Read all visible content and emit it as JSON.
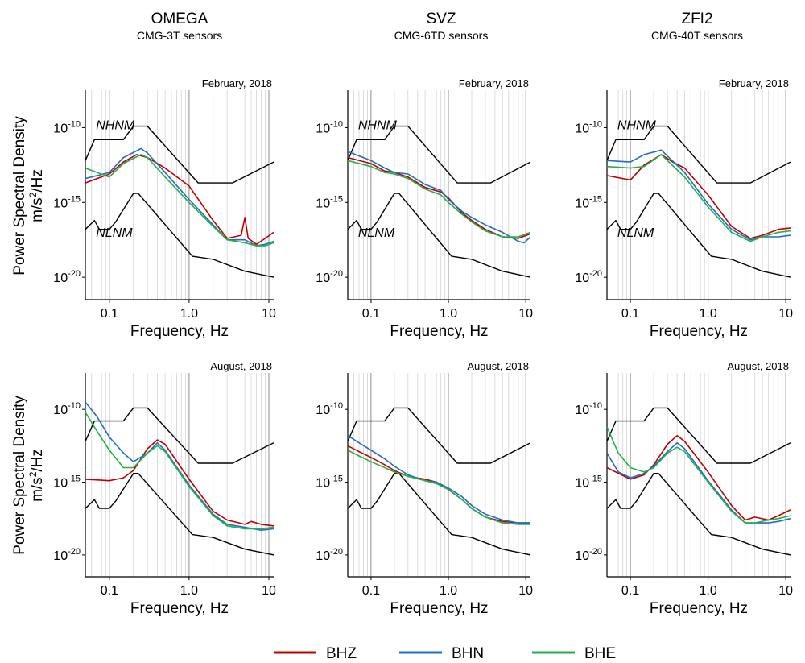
{
  "columns": [
    {
      "station": "OMEGA",
      "sensor": "CMG-3T sensors"
    },
    {
      "station": "SVZ",
      "sensor": "CMG-6TD sensors"
    },
    {
      "station": "ZFI2",
      "sensor": "CMG-40T sensors"
    }
  ],
  "rows": [
    {
      "month": "February, 2018"
    },
    {
      "month": "August, 2018"
    }
  ],
  "ylabel_line1": "Power Spectral Density",
  "ylabel_line2": "m/s",
  "ylabel_sup": "2",
  "ylabel_tail": "/Hz",
  "xlabel": "Frequency, Hz",
  "x_ticks": [
    "0.1",
    "1.0",
    "10"
  ],
  "y_ticks": [
    {
      "base": "10",
      "exp": "-10"
    },
    {
      "base": "10",
      "exp": "-15"
    },
    {
      "base": "10",
      "exp": "-20"
    }
  ],
  "nhnm_label": "NHNM",
  "nlnm_label": "NLNM",
  "legend": [
    {
      "name": "BHZ",
      "color": "#c00000"
    },
    {
      "name": "BHN",
      "color": "#1f6fc0"
    },
    {
      "name": "BHE",
      "color": "#22b04a"
    }
  ],
  "chart_data": {
    "type": "line",
    "xscale": "log",
    "yscale": "log",
    "xlabel": "Frequency, Hz",
    "ylabel": "Power Spectral Density m/s²/Hz",
    "xlim": [
      0.05,
      11.5
    ],
    "ylog_lim": [
      -21.5,
      -7.5
    ],
    "reference_models": {
      "NHNM": {
        "x": [
          0.05,
          0.065,
          0.15,
          0.2,
          0.3,
          1.3,
          3.5,
          11.5
        ],
        "log10_y": [
          -12.2,
          -10.8,
          -10.8,
          -9.9,
          -9.9,
          -13.7,
          -13.7,
          -12.3
        ]
      },
      "NLNM": {
        "x": [
          0.05,
          0.065,
          0.075,
          0.1,
          0.12,
          0.2,
          0.23,
          1.1,
          2.0,
          5.0,
          11.5
        ],
        "log10_y": [
          -16.8,
          -16.2,
          -16.8,
          -16.8,
          -16.3,
          -14.4,
          -14.4,
          -18.6,
          -18.8,
          -19.6,
          -20.0
        ]
      }
    },
    "panels": [
      {
        "station": "OMEGA",
        "month": "February, 2018",
        "series": [
          {
            "name": "BHZ",
            "x": [
              0.05,
              0.1,
              0.15,
              0.22,
              0.3,
              0.5,
              1.0,
              2.0,
              3.0,
              4.5,
              5.0,
              5.5,
              7.0,
              9.0,
              11.5
            ],
            "log10_y": [
              -13.7,
              -13.1,
              -12.3,
              -11.8,
              -12.0,
              -12.7,
              -13.9,
              -16.2,
              -17.4,
              -17.2,
              -16.0,
              -17.4,
              -17.8,
              -17.4,
              -17.0
            ]
          },
          {
            "name": "BHN",
            "x": [
              0.05,
              0.1,
              0.15,
              0.25,
              0.3,
              0.5,
              1.0,
              2.0,
              3.0,
              5.0,
              7.0,
              9.0,
              11.5
            ],
            "log10_y": [
              -13.4,
              -13.0,
              -12.0,
              -11.4,
              -11.7,
              -13.0,
              -14.8,
              -16.5,
              -17.5,
              -17.5,
              -17.9,
              -17.8,
              -17.6
            ]
          },
          {
            "name": "BHE",
            "x": [
              0.05,
              0.1,
              0.15,
              0.25,
              0.3,
              0.5,
              1.0,
              2.0,
              3.0,
              5.0,
              7.0,
              9.0,
              11.5
            ],
            "log10_y": [
              -12.7,
              -13.3,
              -12.4,
              -11.8,
              -12.0,
              -13.3,
              -15.0,
              -16.6,
              -17.5,
              -17.7,
              -17.9,
              -17.9,
              -17.7
            ]
          }
        ]
      },
      {
        "station": "SVZ",
        "month": "February, 2018",
        "series": [
          {
            "name": "BHZ",
            "x": [
              0.05,
              0.1,
              0.15,
              0.2,
              0.3,
              0.5,
              0.8,
              1.0,
              1.5,
              2.0,
              3.0,
              5.0,
              8.0,
              11.5
            ],
            "log10_y": [
              -12.0,
              -12.4,
              -12.9,
              -13.0,
              -13.3,
              -14.0,
              -14.3,
              -14.7,
              -15.7,
              -16.2,
              -16.8,
              -17.3,
              -17.4,
              -17.1
            ]
          },
          {
            "name": "BHN",
            "x": [
              0.05,
              0.1,
              0.15,
              0.2,
              0.3,
              0.5,
              0.8,
              1.0,
              1.5,
              2.0,
              3.0,
              5.0,
              8.0,
              9.5,
              11.5
            ],
            "log10_y": [
              -11.6,
              -12.2,
              -12.7,
              -13.0,
              -13.1,
              -13.8,
              -14.2,
              -14.8,
              -15.6,
              -16.0,
              -16.5,
              -17.0,
              -17.6,
              -17.7,
              -17.3
            ]
          },
          {
            "name": "BHE",
            "x": [
              0.05,
              0.1,
              0.15,
              0.2,
              0.3,
              0.5,
              0.8,
              1.0,
              1.5,
              2.0,
              3.0,
              5.0,
              8.0,
              11.5
            ],
            "log10_y": [
              -12.2,
              -12.6,
              -13.0,
              -13.1,
              -13.4,
              -14.1,
              -14.5,
              -15.0,
              -15.8,
              -16.3,
              -16.9,
              -17.3,
              -17.3,
              -17.0
            ]
          }
        ]
      },
      {
        "station": "ZFI2",
        "month": "February, 2018",
        "series": [
          {
            "name": "BHZ",
            "x": [
              0.05,
              0.1,
              0.15,
              0.25,
              0.35,
              0.5,
              1.0,
              2.0,
              3.5,
              5.0,
              8.0,
              11.5
            ],
            "log10_y": [
              -13.2,
              -13.5,
              -12.5,
              -11.8,
              -12.3,
              -12.7,
              -14.5,
              -16.6,
              -17.4,
              -17.2,
              -16.8,
              -16.7
            ]
          },
          {
            "name": "BHN",
            "x": [
              0.05,
              0.1,
              0.15,
              0.25,
              0.3,
              0.5,
              1.0,
              2.0,
              3.5,
              5.0,
              8.0,
              11.5
            ],
            "log10_y": [
              -12.2,
              -12.3,
              -11.8,
              -11.5,
              -11.9,
              -13.0,
              -15.1,
              -16.8,
              -17.5,
              -17.3,
              -17.3,
              -17.2
            ]
          },
          {
            "name": "BHE",
            "x": [
              0.05,
              0.1,
              0.15,
              0.25,
              0.3,
              0.5,
              1.0,
              2.0,
              3.5,
              5.0,
              8.0,
              11.5
            ],
            "log10_y": [
              -12.6,
              -12.7,
              -12.6,
              -11.8,
              -12.2,
              -13.3,
              -15.3,
              -17.0,
              -17.6,
              -17.3,
              -17.0,
              -16.9
            ]
          }
        ]
      },
      {
        "station": "OMEGA",
        "month": "August, 2018",
        "series": [
          {
            "name": "BHZ",
            "x": [
              0.05,
              0.1,
              0.15,
              0.2,
              0.3,
              0.4,
              0.5,
              1.0,
              2.0,
              3.0,
              5.0,
              6.0,
              8.0,
              11.5
            ],
            "log10_y": [
              -14.8,
              -14.9,
              -14.7,
              -14.2,
              -12.7,
              -12.1,
              -12.4,
              -14.8,
              -17.0,
              -17.6,
              -17.9,
              -17.7,
              -17.9,
              -18.0
            ]
          },
          {
            "name": "BHN",
            "x": [
              0.05,
              0.07,
              0.1,
              0.15,
              0.2,
              0.3,
              0.4,
              0.5,
              1.0,
              2.0,
              3.0,
              5.0,
              8.0,
              11.5
            ],
            "log10_y": [
              -9.5,
              -10.5,
              -11.9,
              -13.0,
              -13.6,
              -13.0,
              -12.3,
              -12.8,
              -15.2,
              -17.2,
              -17.9,
              -18.1,
              -18.3,
              -18.2
            ]
          },
          {
            "name": "BHE",
            "x": [
              0.05,
              0.07,
              0.1,
              0.15,
              0.2,
              0.3,
              0.4,
              0.5,
              1.0,
              2.0,
              3.0,
              5.0,
              8.0,
              11.5
            ],
            "log10_y": [
              -10.2,
              -11.5,
              -12.8,
              -14.0,
              -14.0,
              -13.0,
              -12.5,
              -12.9,
              -15.3,
              -17.3,
              -18.0,
              -18.2,
              -18.2,
              -18.1
            ]
          }
        ]
      },
      {
        "station": "SVZ",
        "month": "August, 2018",
        "series": [
          {
            "name": "BHZ",
            "x": [
              0.05,
              0.07,
              0.1,
              0.15,
              0.2,
              0.3,
              0.5,
              0.7,
              1.0,
              1.5,
              2.0,
              3.0,
              5.0,
              8.0,
              11.5
            ],
            "log10_y": [
              -12.5,
              -12.9,
              -13.3,
              -13.8,
              -14.2,
              -14.6,
              -14.8,
              -15.0,
              -15.5,
              -16.2,
              -16.8,
              -17.4,
              -17.7,
              -17.8,
              -17.8
            ]
          },
          {
            "name": "BHN",
            "x": [
              0.05,
              0.07,
              0.1,
              0.15,
              0.2,
              0.3,
              0.5,
              0.7,
              1.0,
              1.5,
              2.0,
              3.0,
              5.0,
              8.0,
              11.5
            ],
            "log10_y": [
              -11.8,
              -12.3,
              -12.8,
              -13.4,
              -13.9,
              -14.5,
              -14.9,
              -15.0,
              -15.4,
              -16.0,
              -16.6,
              -17.2,
              -17.6,
              -17.8,
              -17.8
            ]
          },
          {
            "name": "BHE",
            "x": [
              0.05,
              0.07,
              0.1,
              0.15,
              0.2,
              0.3,
              0.5,
              0.7,
              1.0,
              1.5,
              2.0,
              3.0,
              5.0,
              8.0,
              11.5
            ],
            "log10_y": [
              -12.8,
              -13.2,
              -13.6,
              -14.0,
              -14.3,
              -14.6,
              -14.9,
              -15.1,
              -15.5,
              -16.2,
              -16.8,
              -17.4,
              -17.8,
              -17.9,
              -17.9
            ]
          }
        ]
      },
      {
        "station": "ZFI2",
        "month": "August, 2018",
        "series": [
          {
            "name": "BHZ",
            "x": [
              0.05,
              0.1,
              0.15,
              0.2,
              0.3,
              0.4,
              0.5,
              1.0,
              2.0,
              3.0,
              4.0,
              6.0,
              8.0,
              11.5
            ],
            "log10_y": [
              -14.0,
              -14.8,
              -14.5,
              -13.8,
              -12.4,
              -11.8,
              -12.2,
              -14.3,
              -16.6,
              -17.6,
              -17.4,
              -17.6,
              -17.3,
              -16.9
            ]
          },
          {
            "name": "BHN",
            "x": [
              0.05,
              0.07,
              0.1,
              0.15,
              0.2,
              0.3,
              0.4,
              0.5,
              1.0,
              2.0,
              3.0,
              4.0,
              6.0,
              8.0,
              11.5
            ],
            "log10_y": [
              -13.0,
              -14.3,
              -14.7,
              -14.4,
              -13.9,
              -12.9,
              -12.3,
              -12.7,
              -14.9,
              -16.9,
              -17.8,
              -17.8,
              -17.8,
              -17.7,
              -17.5
            ]
          },
          {
            "name": "BHE",
            "x": [
              0.05,
              0.07,
              0.1,
              0.15,
              0.2,
              0.3,
              0.4,
              0.5,
              1.0,
              2.0,
              3.0,
              4.0,
              6.0,
              8.0,
              11.5
            ],
            "log10_y": [
              -11.2,
              -13.0,
              -14.0,
              -14.3,
              -14.0,
              -13.0,
              -12.6,
              -12.9,
              -15.0,
              -17.0,
              -17.8,
              -17.8,
              -17.6,
              -17.5,
              -17.3
            ]
          }
        ]
      }
    ]
  }
}
